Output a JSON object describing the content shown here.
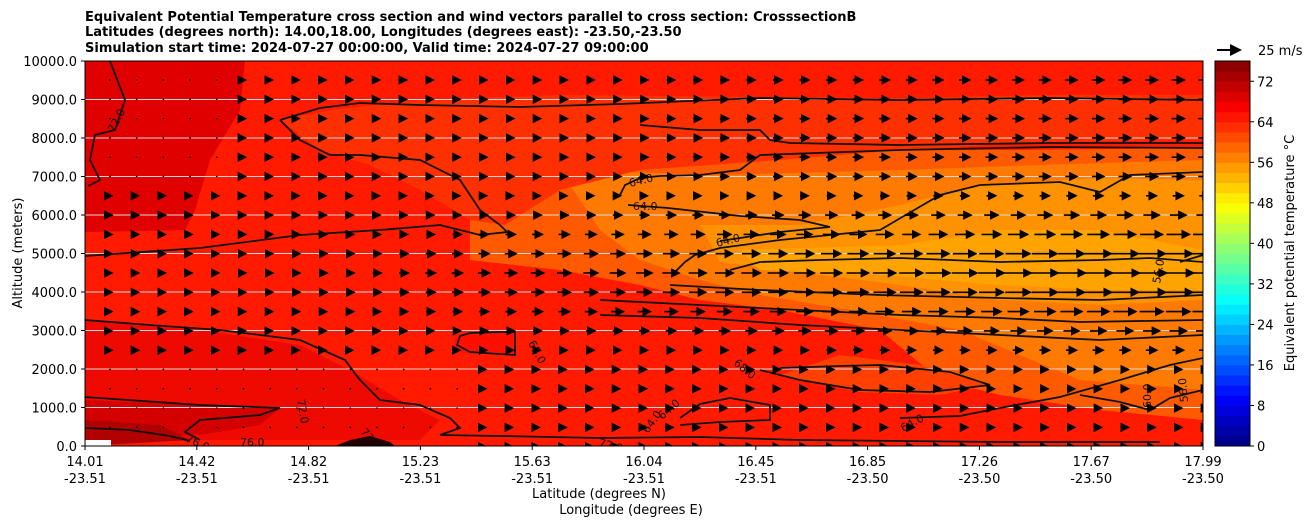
{
  "title_lines": [
    "Equivalent Potential Temperature cross section and wind vectors parallel to cross section: CrosssectionB",
    "Latitudes (degrees north): 14.00,18.00, Longitudes (degrees east): -23.50,-23.50",
    "Simulation start time: 2024-07-27 00:00:00, Valid time: 2024-07-27 09:00:00"
  ],
  "chart_data": {
    "type": "heatmap",
    "title": "Equivalent Potential Temperature cross section and wind vectors parallel to cross section: CrosssectionB",
    "ylabel": "Altitude (meters)",
    "xlabel_lines": [
      "Latitude (degrees N)",
      "Longitude (degrees E)"
    ],
    "ylim": [
      0,
      10000
    ],
    "y_ticks": [
      "0.0",
      "1000.0",
      "2000.0",
      "3000.0",
      "4000.0",
      "5000.0",
      "6000.0",
      "7000.0",
      "8000.0",
      "9000.0",
      "10000.0"
    ],
    "y_tick_values": [
      0,
      1000,
      2000,
      3000,
      4000,
      5000,
      6000,
      7000,
      8000,
      9000,
      10000
    ],
    "x_ticks_lat": [
      "14.01",
      "14.42",
      "14.82",
      "15.23",
      "15.63",
      "16.04",
      "16.45",
      "16.85",
      "17.26",
      "17.67",
      "17.99"
    ],
    "x_ticks_lon": [
      "-23.51",
      "-23.51",
      "-23.51",
      "-23.51",
      "-23.51",
      "-23.51",
      "-23.51",
      "-23.50",
      "-23.50",
      "-23.50",
      "-23.50"
    ],
    "x_tick_fractions": [
      0,
      0.1,
      0.2,
      0.3,
      0.4,
      0.5,
      0.6,
      0.7,
      0.8,
      0.9,
      1.0
    ],
    "grid": "horizontal",
    "colorbar": {
      "label": "Equivalent potential temperature $^\\circ$C",
      "label_display": "Equivalent potential temperature °C",
      "range": [
        0,
        76
      ],
      "ticks": [
        "0",
        "8",
        "16",
        "24",
        "32",
        "40",
        "48",
        "56",
        "64",
        "72"
      ],
      "tick_values": [
        0,
        8,
        16,
        24,
        32,
        40,
        48,
        56,
        64,
        72
      ],
      "colormap": "jet"
    },
    "quiver_key": {
      "label": "25 m/s",
      "value": 25
    },
    "contour_levels": [
      "56.0",
      "60.0",
      "64.0",
      "68.0",
      "72.0",
      "76.0"
    ],
    "contour_labels": [
      "72.0",
      "64.0",
      "64.0",
      "64.0",
      "56.0",
      "68.0",
      "68.0",
      "72.0",
      "64.0",
      "64.0",
      "64.0",
      "60.0",
      "56.0",
      "76.0",
      "76.0",
      "72.0",
      "72.0"
    ],
    "theta_e_regions": [
      {
        "description": "background",
        "value": 69
      },
      {
        "description": "upper-left core",
        "value": 73
      },
      {
        "description": "upper band",
        "value": 68
      },
      {
        "description": "mid-level east",
        "value": 63
      },
      {
        "description": "mid-level core",
        "value": 60
      },
      {
        "description": "low-level core",
        "value": 66
      },
      {
        "description": "surface-left",
        "value": 74
      }
    ]
  }
}
